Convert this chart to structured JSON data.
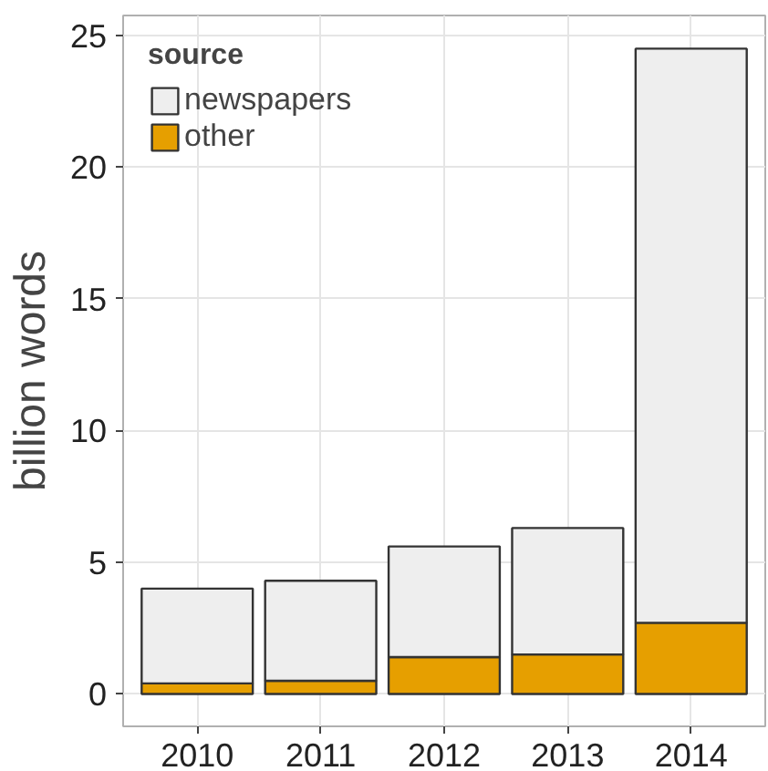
{
  "chart_data": {
    "type": "bar",
    "stacked": true,
    "categories": [
      "2010",
      "2011",
      "2012",
      "2013",
      "2014"
    ],
    "series": [
      {
        "name": "other",
        "color": "#e69f00",
        "values": [
          0.4,
          0.5,
          1.4,
          1.5,
          2.7
        ]
      },
      {
        "name": "newspapers",
        "color": "#eeeeee",
        "values": [
          3.6,
          3.8,
          4.2,
          4.8,
          21.8
        ]
      }
    ],
    "ylabel": "billion words",
    "legend_title": "source",
    "ylim": [
      -1.23,
      25.76
    ],
    "yticks": [
      0,
      5,
      10,
      15,
      20,
      25
    ],
    "grid": true,
    "legend": "top left"
  }
}
